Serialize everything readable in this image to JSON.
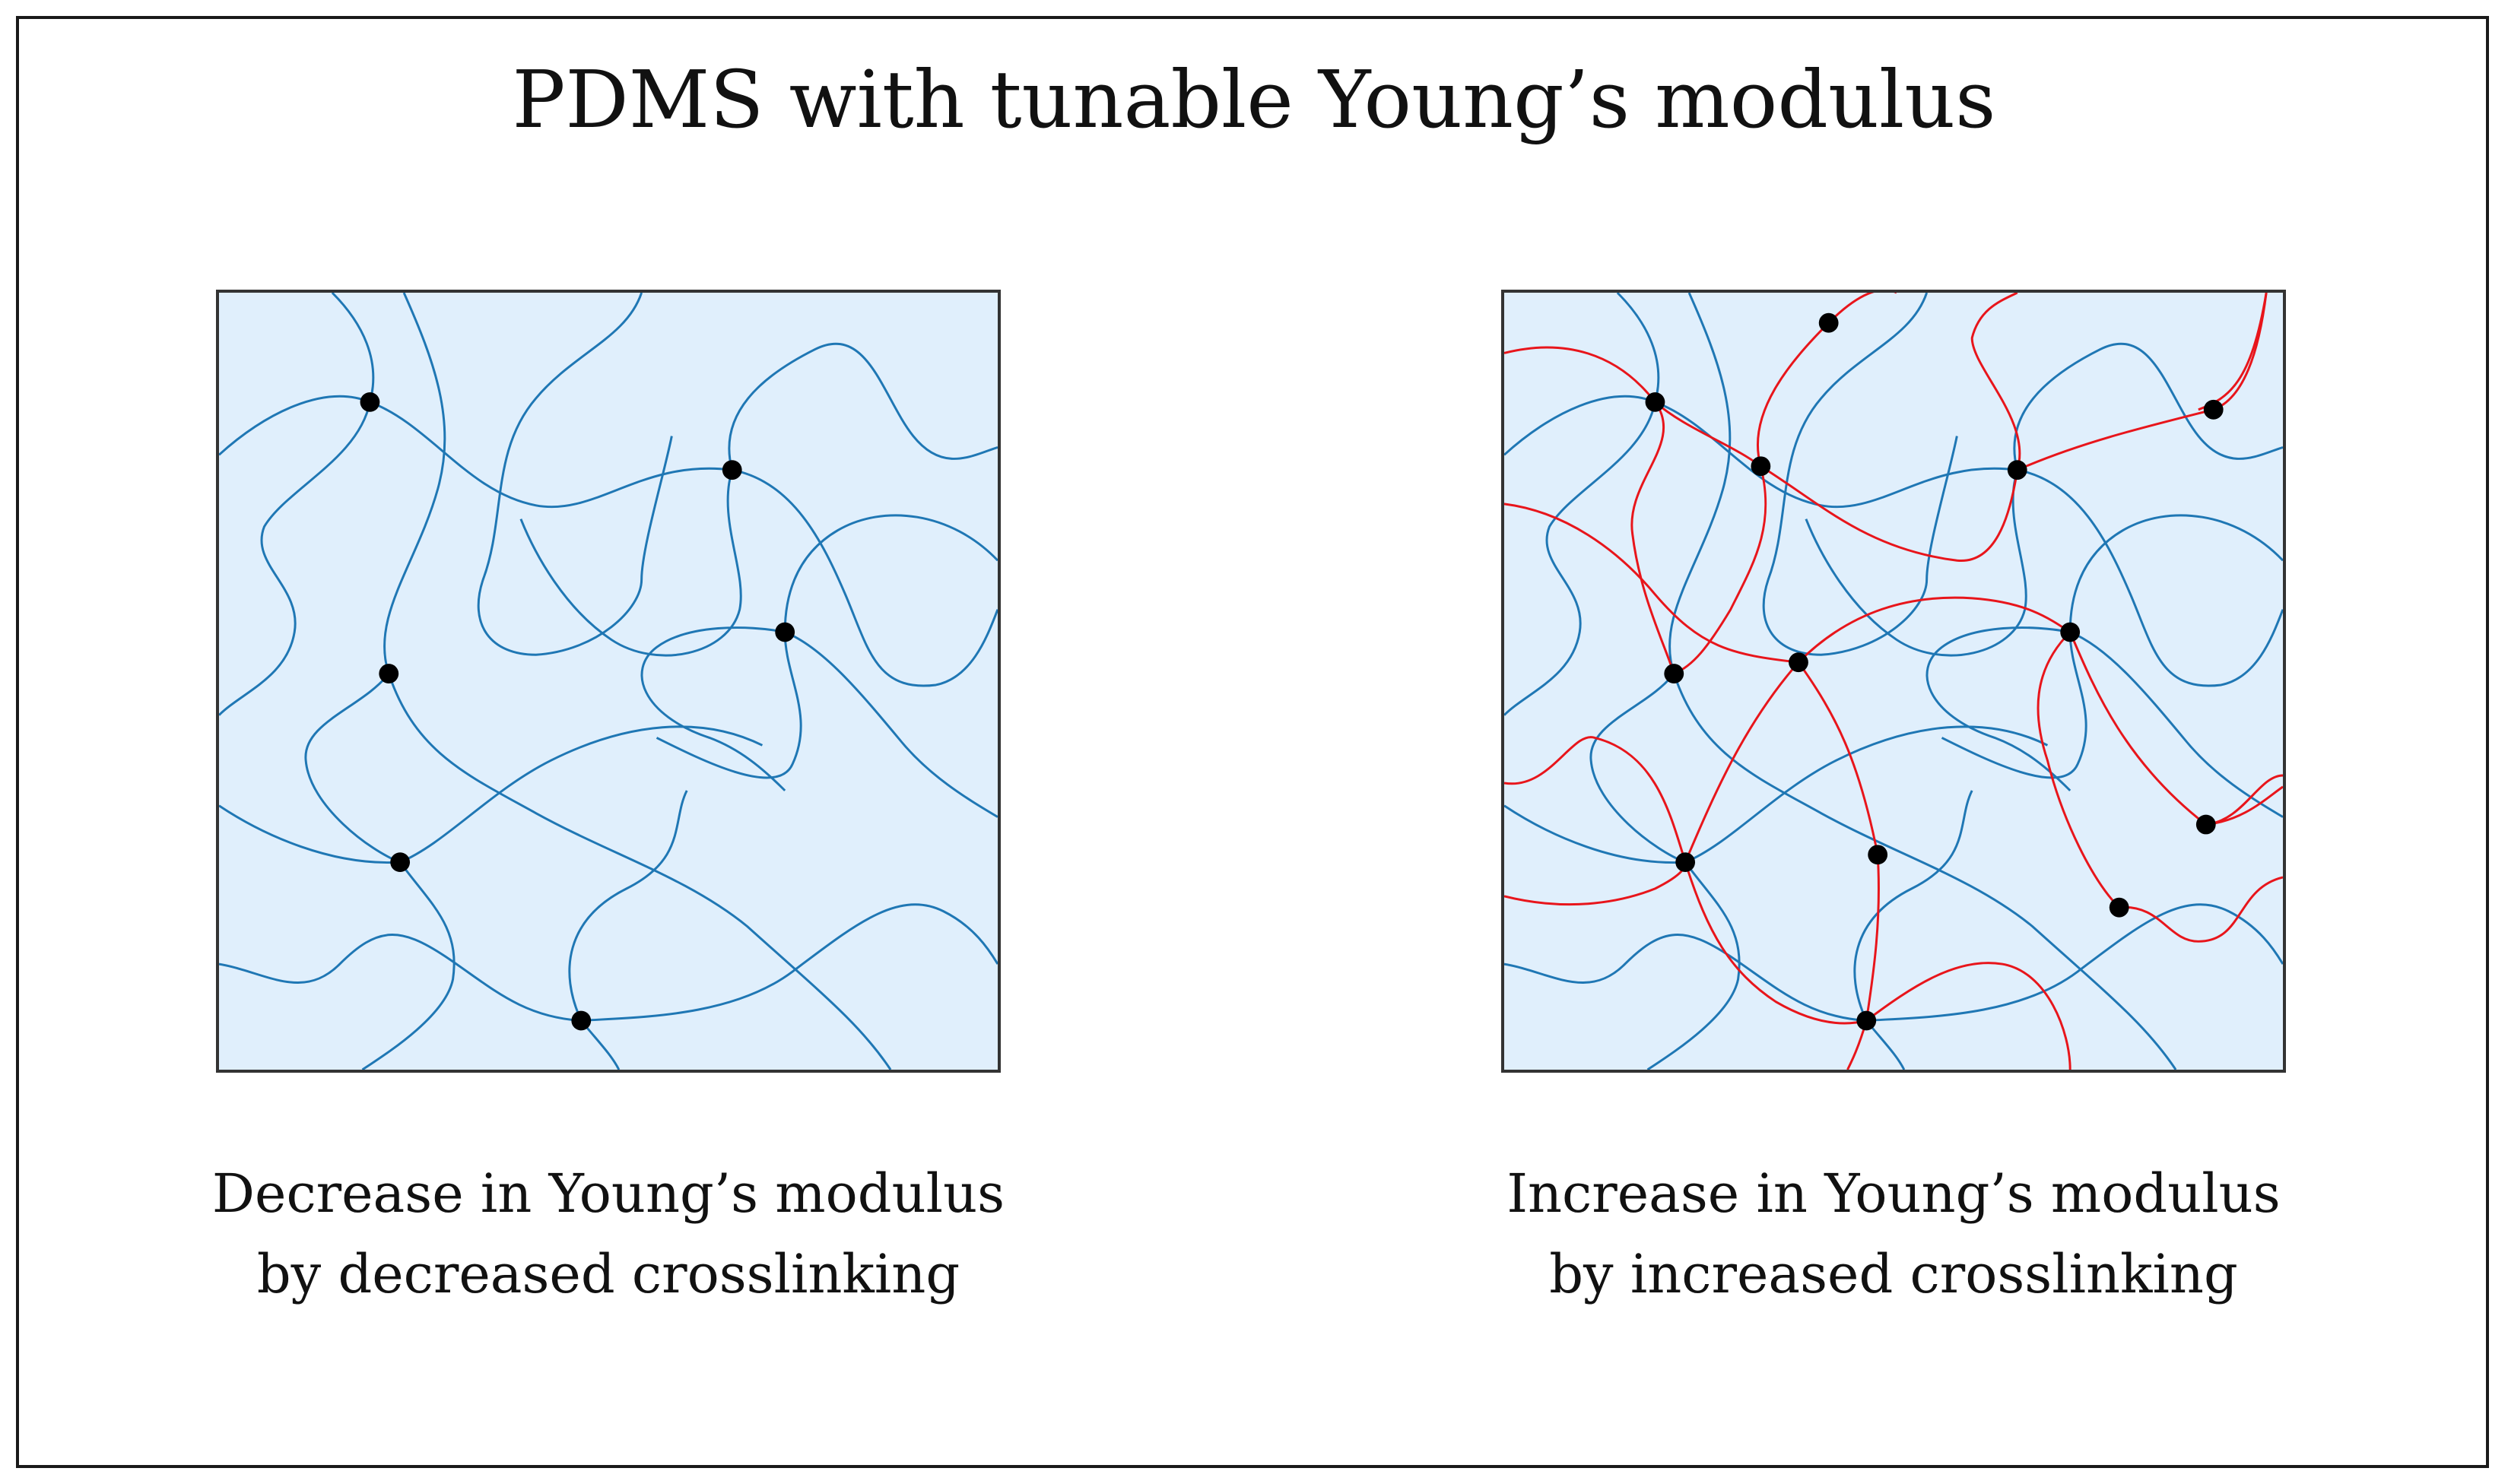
{
  "title": "PDMS with tunable Young’s modulus",
  "colors": {
    "background": "#ffffff",
    "panel_fill": "#e0effc",
    "panel_border": "#333333",
    "chain_blue": "#1f77b4",
    "chain_red": "#e8151b",
    "crosslink": "#000000"
  },
  "panels": [
    {
      "caption_line1": "Decrease in Young’s modulus",
      "caption_line2": "by decreased crosslinking",
      "chain_types": [
        "blue"
      ]
    },
    {
      "caption_line1": "Increase in Young’s modulus",
      "caption_line2": "by increased crosslinking",
      "chain_types": [
        "blue",
        "red"
      ]
    }
  ]
}
